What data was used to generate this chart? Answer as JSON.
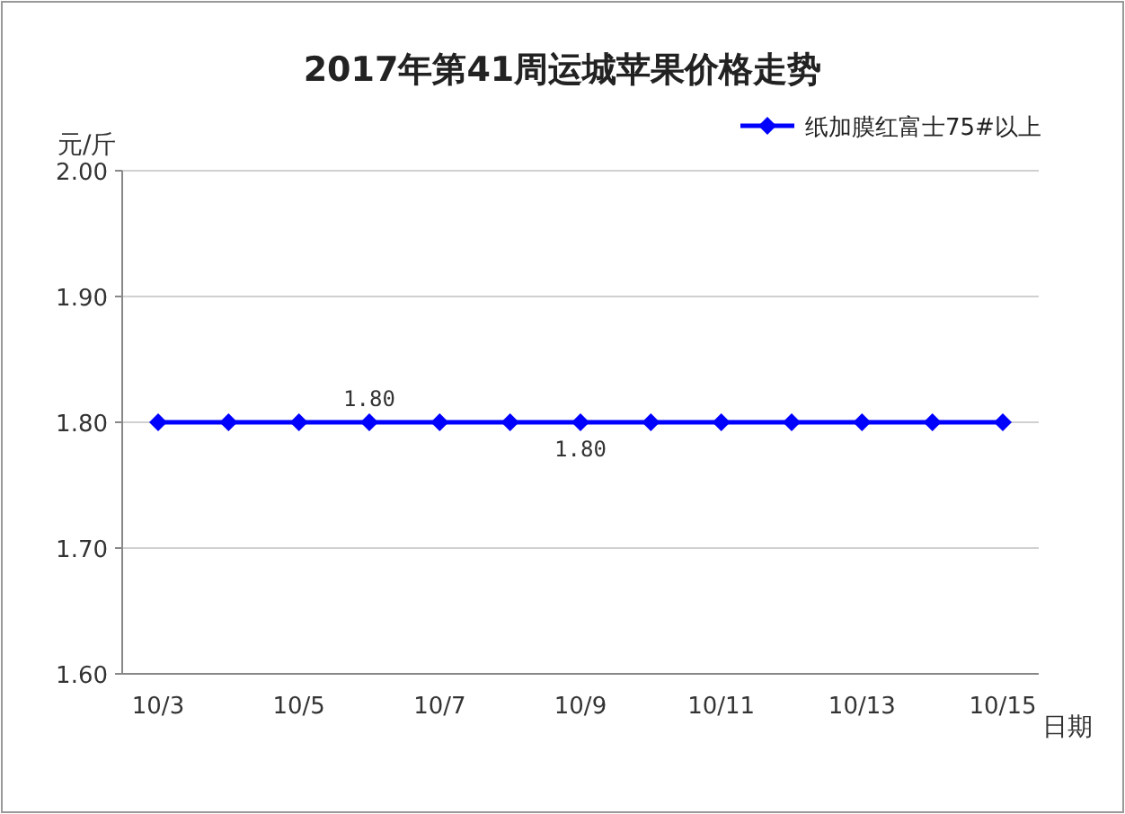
{
  "chart_data": {
    "type": "line",
    "title": "2017年第41周运城苹果价格走势",
    "xlabel": "日期",
    "ylabel": "元/斤",
    "categories": [
      "10/3",
      null,
      "10/5",
      null,
      "10/7",
      null,
      "10/9",
      null,
      "10/11",
      null,
      "10/13",
      null,
      "10/15"
    ],
    "series": [
      {
        "name": "纸加膜红富士75#以上",
        "color": "#0000ff",
        "values": [
          1.8,
          1.8,
          1.8,
          1.8,
          1.8,
          1.8,
          1.8,
          1.8,
          1.8,
          1.8,
          1.8,
          1.8,
          1.8
        ],
        "value_labels": [
          null,
          null,
          null,
          "1.80",
          null,
          null,
          "1.80",
          null,
          null,
          null,
          null,
          null,
          null
        ]
      }
    ],
    "ylim": [
      1.6,
      2.0
    ],
    "yticks": [
      {
        "value": 1.6,
        "label": "1.60"
      },
      {
        "value": 1.7,
        "label": "1.70"
      },
      {
        "value": 1.8,
        "label": "1.80"
      },
      {
        "value": 1.9,
        "label": "1.90"
      },
      {
        "value": 2.0,
        "label": "2.00"
      }
    ],
    "grid": "y",
    "legend": "top right",
    "marker": "diamond"
  }
}
